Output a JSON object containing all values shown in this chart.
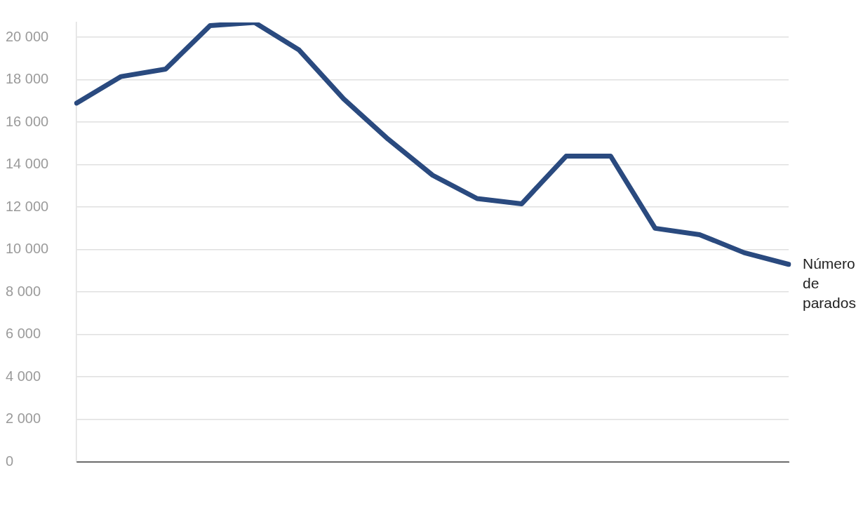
{
  "chart_data": {
    "type": "line",
    "categories": [
      null,
      null,
      null,
      null,
      null,
      null,
      null,
      null,
      null,
      null,
      null,
      null,
      null,
      null,
      null,
      null,
      null
    ],
    "series": [
      {
        "name": "Número de parados",
        "color": "#2a4a7f",
        "values": [
          16900,
          18150,
          18500,
          20550,
          20700,
          19400,
          17100,
          15200,
          13500,
          12400,
          12150,
          14400,
          14400,
          11000,
          10700,
          9850,
          9300
        ]
      }
    ],
    "yticks": [
      {
        "value": 0,
        "label": "0"
      },
      {
        "value": 2000,
        "label": "2 000"
      },
      {
        "value": 4000,
        "label": "4 000"
      },
      {
        "value": 6000,
        "label": "6 000"
      },
      {
        "value": 8000,
        "label": "8 000"
      },
      {
        "value": 10000,
        "label": "10 000"
      },
      {
        "value": 12000,
        "label": "12 000"
      },
      {
        "value": 14000,
        "label": "14 000"
      },
      {
        "value": 16000,
        "label": "16 000"
      },
      {
        "value": 18000,
        "label": "18 000"
      },
      {
        "value": 20000,
        "label": "20 000"
      }
    ],
    "ylim": [
      0,
      20700
    ],
    "grid": "y",
    "tick_labels": "y",
    "legend": false
  }
}
